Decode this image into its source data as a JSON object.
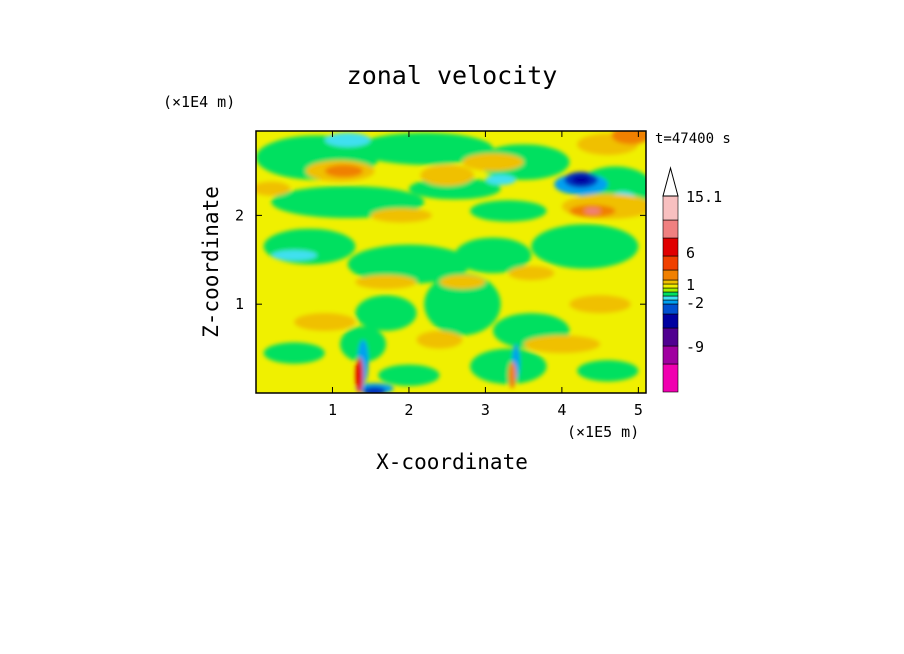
{
  "chart_data": {
    "type": "heatmap",
    "title": "zonal velocity",
    "xlabel": "X-coordinate",
    "ylabel": "Z-coordinate",
    "x_unit_label": "(×1E5 m)",
    "y_unit_label": "(×1E4 m)",
    "time_label": "t=47400 s",
    "xlim": [
      0,
      5.1
    ],
    "ylim": [
      0,
      2.95
    ],
    "x_ticks": [
      1,
      2,
      3,
      4,
      5
    ],
    "y_ticks": [
      1,
      2
    ],
    "colorbar": {
      "labels": [
        "15.1",
        "6",
        "1",
        "-2",
        "-9"
      ],
      "colors": [
        "#f000b0",
        "#a000a0",
        "#500090",
        "#0000a0",
        "#0050d0",
        "#00a0f0",
        "#40e0f0",
        "#00e060",
        "#a0f000",
        "#f0f000",
        "#f0c000",
        "#f08000",
        "#f04000",
        "#e00000",
        "#f08080",
        "#f8c0c0"
      ]
    },
    "field_description_levels": {
      "background": "#f0f000",
      "positive_max_region": [
        4.3,
        2.45
      ],
      "negative_max_region": [
        4.3,
        2.4
      ]
    }
  }
}
